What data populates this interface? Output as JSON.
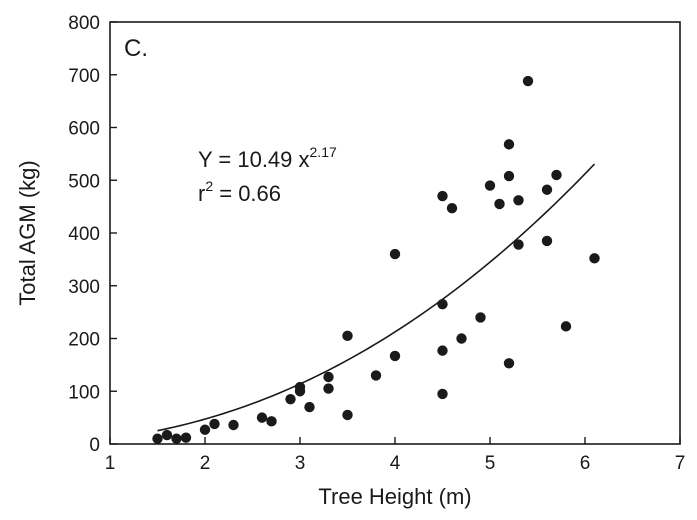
{
  "chart_data": {
    "type": "scatter",
    "panel_label": "C.",
    "xlabel": "Tree Height (m)",
    "ylabel": "Total AGM (kg)",
    "xlim": [
      1,
      7
    ],
    "ylim": [
      0,
      800
    ],
    "xticks": [
      1,
      2,
      3,
      4,
      5,
      6,
      7
    ],
    "yticks": [
      0,
      100,
      200,
      300,
      400,
      500,
      600,
      700,
      800
    ],
    "grid": false,
    "legend": "none",
    "point_color": "#1a1a1a",
    "points": [
      [
        1.5,
        10
      ],
      [
        1.6,
        17
      ],
      [
        1.7,
        10
      ],
      [
        1.8,
        12
      ],
      [
        2.0,
        27
      ],
      [
        2.1,
        38
      ],
      [
        2.3,
        36
      ],
      [
        2.6,
        50
      ],
      [
        2.7,
        43
      ],
      [
        2.9,
        85
      ],
      [
        3.0,
        100
      ],
      [
        3.0,
        108
      ],
      [
        3.1,
        70
      ],
      [
        3.3,
        105
      ],
      [
        3.3,
        127
      ],
      [
        3.5,
        205
      ],
      [
        3.5,
        55
      ],
      [
        3.8,
        130
      ],
      [
        4.0,
        167
      ],
      [
        4.0,
        360
      ],
      [
        4.5,
        470
      ],
      [
        4.5,
        265
      ],
      [
        4.5,
        177
      ],
      [
        4.5,
        95
      ],
      [
        4.6,
        447
      ],
      [
        4.7,
        200
      ],
      [
        4.9,
        240
      ],
      [
        5.0,
        490
      ],
      [
        5.1,
        455
      ],
      [
        5.2,
        568
      ],
      [
        5.2,
        508
      ],
      [
        5.2,
        153
      ],
      [
        5.3,
        462
      ],
      [
        5.3,
        378
      ],
      [
        5.4,
        688
      ],
      [
        5.6,
        482
      ],
      [
        5.6,
        385
      ],
      [
        5.7,
        510
      ],
      [
        5.8,
        223
      ],
      [
        6.1,
        352
      ]
    ],
    "fit": {
      "type": "power",
      "coefficient": 10.49,
      "exponent": 2.17,
      "x_range": [
        1.5,
        6.1
      ]
    },
    "annotation": {
      "equation_prefix": "Y = 10.49 x",
      "equation_exponent": "2.17",
      "r_symbol": "r",
      "r_exponent": "2",
      "r_value_text": " = 0.66"
    }
  }
}
